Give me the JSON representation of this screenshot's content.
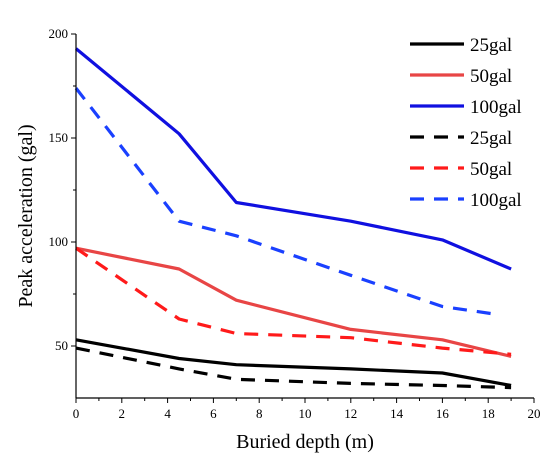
{
  "chart_data": {
    "type": "line",
    "xlabel": "Buried depth (m)",
    "ylabel": "Peak acceleration (gal)",
    "xlim": [
      0,
      20
    ],
    "ylim": [
      25,
      200
    ],
    "xticks": [
      0,
      2,
      4,
      6,
      8,
      10,
      12,
      14,
      16,
      18,
      20
    ],
    "yticks": [
      50,
      100,
      150,
      200
    ],
    "grid": false,
    "legend_position": "top-right",
    "series": [
      {
        "name": "25gal",
        "color": "#000000",
        "dash": "solid",
        "x": [
          0,
          4.5,
          7,
          12,
          16,
          19
        ],
        "y": [
          53,
          44,
          41,
          39,
          37,
          31
        ]
      },
      {
        "name": "50gal",
        "color": "#e84545",
        "dash": "solid",
        "x": [
          0,
          4.5,
          7,
          12,
          16,
          19
        ],
        "y": [
          97,
          87,
          72,
          58,
          53,
          45
        ]
      },
      {
        "name": "100gal",
        "color": "#1010e0",
        "dash": "solid",
        "x": [
          0,
          4.5,
          7,
          12,
          16,
          19
        ],
        "y": [
          193,
          152,
          119,
          110,
          101,
          87
        ]
      },
      {
        "name": "25gal",
        "color": "#000000",
        "dash": "dashed",
        "x": [
          0,
          4.5,
          7,
          12,
          16,
          19
        ],
        "y": [
          49,
          39,
          34,
          32,
          31,
          30
        ]
      },
      {
        "name": "50gal",
        "color": "#ff1a1a",
        "dash": "dashed",
        "x": [
          0,
          4.5,
          7,
          12,
          16,
          19
        ],
        "y": [
          97,
          63,
          56,
          54,
          49,
          46
        ]
      },
      {
        "name": "100gal",
        "color": "#1a40ff",
        "dash": "dashed",
        "x": [
          0,
          4.5,
          7,
          12,
          16,
          18.5
        ],
        "y": [
          174,
          110,
          103,
          84,
          69,
          65
        ]
      }
    ]
  }
}
